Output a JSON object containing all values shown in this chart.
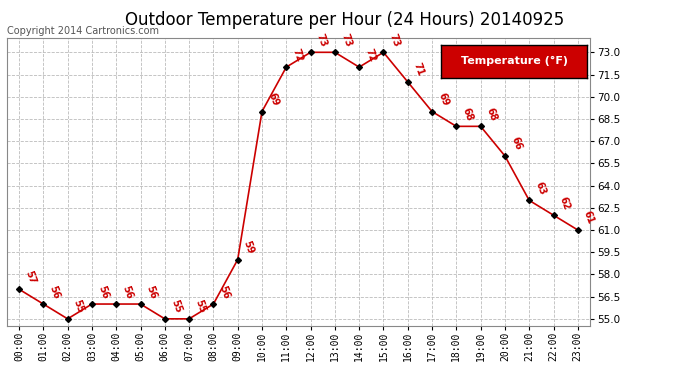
{
  "title": "Outdoor Temperature per Hour (24 Hours) 20140925",
  "copyright": "Copyright 2014 Cartronics.com",
  "legend_label": "Temperature (°F)",
  "hours": [
    0,
    1,
    2,
    3,
    4,
    5,
    6,
    7,
    8,
    9,
    10,
    11,
    12,
    13,
    14,
    15,
    16,
    17,
    18,
    19,
    20,
    21,
    22,
    23
  ],
  "temps": [
    57,
    56,
    55,
    56,
    56,
    56,
    55,
    55,
    56,
    59,
    69,
    72,
    73,
    73,
    72,
    73,
    71,
    69,
    68,
    68,
    66,
    63,
    62,
    61
  ],
  "x_labels": [
    "00:00",
    "01:00",
    "02:00",
    "03:00",
    "04:00",
    "05:00",
    "06:00",
    "07:00",
    "08:00",
    "09:00",
    "10:00",
    "11:00",
    "12:00",
    "13:00",
    "14:00",
    "15:00",
    "16:00",
    "17:00",
    "18:00",
    "19:00",
    "20:00",
    "21:00",
    "22:00",
    "23:00"
  ],
  "ylim": [
    54.5,
    74.0
  ],
  "yticks": [
    55.0,
    56.5,
    58.0,
    59.5,
    61.0,
    62.5,
    64.0,
    65.5,
    67.0,
    68.5,
    70.0,
    71.5,
    73.0
  ],
  "line_color": "#cc0000",
  "marker_color": "#000000",
  "bg_color": "#ffffff",
  "grid_color": "#bbbbbb",
  "title_fontsize": 12,
  "copyright_fontsize": 7,
  "legend_bg": "#cc0000",
  "legend_text_color": "#ffffff",
  "legend_fontsize": 8
}
